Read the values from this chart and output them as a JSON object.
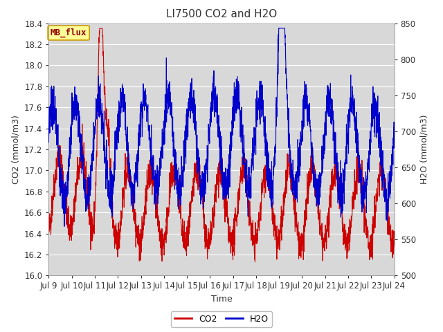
{
  "title": "LI7500 CO2 and H2O",
  "xlabel": "Time",
  "ylabel_left": "CO2 (mmol/m3)",
  "ylabel_right": "H2O (mmol/m3)",
  "co2_color": "#cc0000",
  "h2o_color": "#0000cc",
  "co2_lw": 0.8,
  "h2o_lw": 0.8,
  "ylim_left": [
    16.0,
    18.4
  ],
  "ylim_right": [
    500,
    850
  ],
  "yticks_left": [
    16.0,
    16.2,
    16.4,
    16.6,
    16.8,
    17.0,
    17.2,
    17.4,
    17.6,
    17.8,
    18.0,
    18.2,
    18.4
  ],
  "yticks_right": [
    500,
    550,
    600,
    650,
    700,
    750,
    800,
    850
  ],
  "xtick_labels": [
    "Jul 9",
    "Jul 10",
    "Jul 11",
    "Jul 12",
    "Jul 13",
    "Jul 14",
    "Jul 15",
    "Jul 16",
    "Jul 17",
    "Jul 18",
    "Jul 19",
    "Jul 20",
    "Jul 21",
    "Jul 22",
    "Jul 23",
    "Jul 24"
  ],
  "annotation_text": "MB_flux",
  "annotation_bg": "#ffff99",
  "annotation_border": "#cc9900",
  "annotation_color": "#990000",
  "grid_color": "#ffffff",
  "bg_color": "#d8d8d8",
  "legend_items": [
    "CO2",
    "H2O"
  ],
  "legend_colors": [
    "#cc0000",
    "#0000cc"
  ],
  "title_fontsize": 11,
  "label_fontsize": 9,
  "tick_fontsize": 8.5
}
